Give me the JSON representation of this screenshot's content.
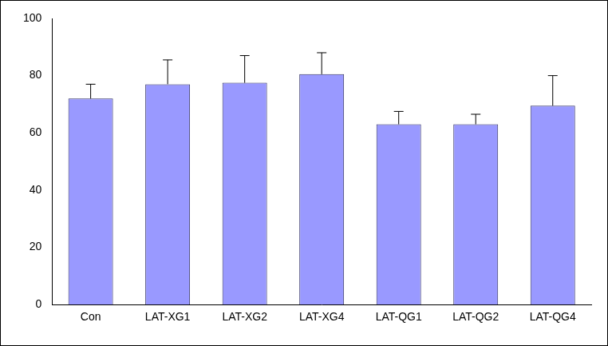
{
  "chart_data": {
    "type": "bar",
    "categories": [
      "Con",
      "LAT-XG1",
      "LAT-XG2",
      "LAT-XG4",
      "LAT-QG1",
      "LAT-QG2",
      "LAT-QG4"
    ],
    "values": [
      72,
      77,
      77.5,
      80.5,
      63,
      63,
      69.5
    ],
    "errors": [
      5,
      8.5,
      9.5,
      7.5,
      4.5,
      3.5,
      10.5
    ],
    "color": "#9999ff",
    "ylim": [
      0,
      100
    ],
    "yticks": [
      0,
      20,
      40,
      60,
      80,
      100
    ],
    "grid": false
  }
}
